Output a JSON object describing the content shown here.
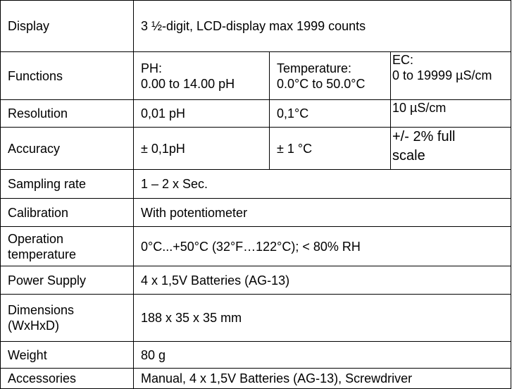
{
  "table": {
    "rows": [
      {
        "label": [
          "Display"
        ],
        "cells": [
          [
            "3 ½-digit, LCD-display max 1999 counts"
          ]
        ]
      },
      {
        "label": [
          "Functions"
        ],
        "cells": [
          [
            "PH:",
            "0.00 to 14.00 pH"
          ],
          [
            "Temperature:",
            "0.0°C to 50.0°C"
          ],
          [
            "EC:",
            "0 to 19999 µS/cm"
          ]
        ]
      },
      {
        "label": [
          "Resolution"
        ],
        "cells": [
          [
            "0,01 pH"
          ],
          [
            "0,1°C"
          ],
          [
            "10 µS/cm"
          ]
        ]
      },
      {
        "label": [
          "Accuracy"
        ],
        "cells": [
          [
            "± 0,1pH"
          ],
          [
            "± 1 °C"
          ],
          [
            "+/- 2% full",
            "scale"
          ]
        ]
      },
      {
        "label": [
          "Sampling rate"
        ],
        "cells": [
          [
            "1 – 2 x Sec."
          ]
        ]
      },
      {
        "label": [
          "Calibration"
        ],
        "cells": [
          [
            "With potentiometer"
          ]
        ]
      },
      {
        "label": [
          "Operation",
          "temperature"
        ],
        "cells": [
          [
            "0°C...+50°C (32°F…122°C); < 80% RH"
          ]
        ]
      },
      {
        "label": [
          "Power Supply"
        ],
        "cells": [
          [
            "4 x 1,5V Batteries (AG-13)"
          ]
        ]
      },
      {
        "label": [
          "Dimensions",
          "(WxHxD)"
        ],
        "cells": [
          [
            "188 x 35 x 35 mm"
          ]
        ]
      },
      {
        "label": [
          "Weight"
        ],
        "cells": [
          [
            "80 g"
          ]
        ]
      },
      {
        "label": [
          "Accessories"
        ],
        "cells": [
          [
            "Manual, 4 x 1,5V Batteries (AG-13), Screwdriver"
          ]
        ]
      }
    ]
  }
}
